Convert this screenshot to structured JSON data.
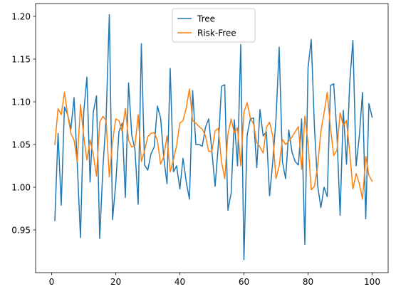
{
  "chart_data": {
    "type": "line",
    "title": "",
    "xlabel": "",
    "ylabel": "",
    "xlim": [
      -5,
      105
    ],
    "ylim": [
      0.9,
      1.215
    ],
    "grid": false,
    "legend_position": "upper center",
    "x_ticks": [
      0,
      20,
      40,
      60,
      80,
      100
    ],
    "y_ticks": [
      0.95,
      1.0,
      1.05,
      1.1,
      1.15,
      1.2
    ],
    "x_tick_labels": [
      "0",
      "20",
      "40",
      "60",
      "80",
      "100"
    ],
    "y_tick_labels": [
      "0.95",
      "1.00",
      "1.05",
      "1.10",
      "1.15",
      "1.20"
    ],
    "x": [
      1,
      2,
      3,
      4,
      5,
      6,
      7,
      8,
      9,
      10,
      11,
      12,
      13,
      14,
      15,
      16,
      17,
      18,
      19,
      20,
      21,
      22,
      23,
      24,
      25,
      26,
      27,
      28,
      29,
      30,
      31,
      32,
      33,
      34,
      35,
      36,
      37,
      38,
      39,
      40,
      41,
      42,
      43,
      44,
      45,
      46,
      47,
      48,
      49,
      50,
      51,
      52,
      53,
      54,
      55,
      56,
      57,
      58,
      59,
      60,
      61,
      62,
      63,
      64,
      65,
      66,
      67,
      68,
      69,
      70,
      71,
      72,
      73,
      74,
      75,
      76,
      77,
      78,
      79,
      80,
      81,
      82,
      83,
      84,
      85,
      86,
      87,
      88,
      89,
      90,
      91,
      92,
      93,
      94,
      95,
      96,
      97,
      98,
      99,
      100
    ],
    "series": [
      {
        "name": "Tree",
        "color": "#1f77b4",
        "values": [
          0.961,
          1.063,
          0.979,
          1.094,
          1.085,
          1.068,
          1.105,
          1.027,
          0.941,
          1.087,
          1.129,
          1.006,
          1.088,
          1.107,
          0.94,
          1.023,
          1.081,
          1.202,
          0.962,
          1.004,
          1.065,
          1.075,
          0.988,
          1.122,
          1.061,
          1.044,
          0.98,
          1.168,
          1.026,
          1.02,
          1.039,
          1.047,
          1.095,
          1.081,
          1.034,
          1.004,
          1.139,
          1.018,
          1.025,
          0.998,
          1.034,
          1.006,
          0.986,
          1.113,
          1.05,
          1.05,
          1.048,
          1.07,
          1.08,
          1.042,
          1.001,
          1.049,
          1.118,
          1.12,
          0.973,
          0.993,
          1.079,
          1.025,
          1.167,
          0.915,
          1.061,
          1.08,
          1.081,
          1.023,
          1.091,
          1.06,
          1.065,
          0.99,
          1.03,
          1.08,
          1.164,
          1.03,
          1.01,
          1.067,
          1.041,
          1.03,
          1.026,
          1.08,
          0.933,
          1.14,
          1.173,
          1.07,
          1.002,
          0.976,
          1.0,
          0.989,
          1.119,
          1.121,
          1.064,
          0.967,
          1.09,
          1.027,
          1.122,
          1.172,
          1.025,
          1.06,
          1.111,
          0.963,
          1.098,
          1.082
        ]
      },
      {
        "name": "Risk-Free",
        "color": "#ff7f0e",
        "values": [
          1.05,
          1.092,
          1.085,
          1.111,
          1.085,
          1.063,
          1.055,
          1.03,
          1.097,
          1.06,
          1.032,
          1.055,
          1.038,
          1.013,
          1.076,
          1.083,
          1.078,
          1.012,
          1.053,
          1.08,
          1.078,
          1.065,
          1.092,
          1.055,
          1.047,
          1.049,
          1.085,
          1.03,
          1.043,
          1.059,
          1.063,
          1.064,
          1.055,
          1.027,
          1.036,
          1.06,
          1.018,
          1.032,
          1.049,
          1.075,
          1.078,
          1.093,
          1.115,
          1.078,
          1.075,
          1.071,
          1.068,
          1.06,
          1.042,
          1.042,
          1.066,
          1.069,
          1.03,
          1.01,
          1.062,
          1.08,
          1.063,
          1.07,
          1.025,
          1.088,
          1.099,
          1.081,
          1.074,
          1.052,
          1.047,
          1.04,
          1.07,
          1.076,
          1.06,
          1.01,
          1.025,
          1.056,
          1.05,
          1.054,
          1.059,
          1.065,
          1.071,
          1.021,
          1.083,
          1.052,
          0.997,
          1.001,
          1.025,
          1.065,
          1.087,
          1.111,
          1.07,
          1.037,
          1.043,
          1.087,
          1.072,
          1.078,
          1.041,
          0.998,
          1.016,
          1.004,
          0.986,
          1.036,
          1.014,
          1.007
        ]
      }
    ]
  }
}
